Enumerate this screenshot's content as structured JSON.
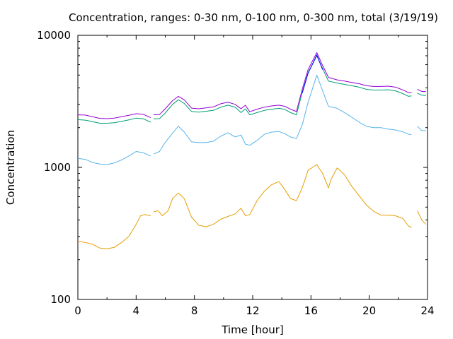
{
  "chart_data": {
    "type": "line",
    "title": "Concentration, ranges: 0-30 nm, 0-100 nm, 0-300 nm, total (3/19/19)",
    "xlabel": "Time [hour]",
    "ylabel": "Concentration",
    "xlim": [
      0,
      24
    ],
    "ylim": [
      100,
      10000
    ],
    "yscale": "log",
    "grid": false,
    "legend": "none",
    "x_ticks": [
      0,
      4,
      8,
      12,
      16,
      20,
      24
    ],
    "x_tick_labels": [
      "0",
      "4",
      "8",
      "12",
      "16",
      "20",
      "24"
    ],
    "y_ticks": [
      100,
      1000,
      10000
    ],
    "y_tick_labels": [
      "100",
      "1000",
      "10000"
    ],
    "series": [
      {
        "color": "#e69f00",
        "segments": [
          [
            [
              0,
              275
            ],
            [
              0.5,
              270
            ],
            [
              1,
              262
            ],
            [
              1.5,
              245
            ],
            [
              2,
              242
            ],
            [
              2.5,
              248
            ],
            [
              3,
              270
            ],
            [
              3.5,
              300
            ],
            [
              4,
              370
            ],
            [
              4.3,
              430
            ],
            [
              4.6,
              440
            ],
            [
              5,
              430
            ]
          ],
          [
            [
              5.2,
              460
            ],
            [
              5.5,
              470
            ],
            [
              5.8,
              430
            ],
            [
              6.2,
              470
            ],
            [
              6.5,
              580
            ],
            [
              6.9,
              640
            ],
            [
              7.3,
              580
            ],
            [
              7.8,
              420
            ],
            [
              8.3,
              365
            ],
            [
              8.8,
              355
            ],
            [
              9.3,
              370
            ],
            [
              9.8,
              405
            ],
            [
              10.3,
              425
            ],
            [
              10.8,
              445
            ],
            [
              11.2,
              490
            ],
            [
              11.5,
              430
            ],
            [
              11.8,
              440
            ],
            [
              12.3,
              560
            ],
            [
              12.8,
              660
            ],
            [
              13.3,
              740
            ],
            [
              13.8,
              780
            ],
            [
              14.2,
              680
            ],
            [
              14.6,
              580
            ],
            [
              15,
              560
            ],
            [
              15.4,
              700
            ],
            [
              15.8,
              950
            ],
            [
              16.4,
              1050
            ],
            [
              16.8,
              900
            ],
            [
              17.2,
              700
            ],
            [
              17.4,
              820
            ],
            [
              17.8,
              990
            ],
            [
              18.3,
              880
            ],
            [
              18.8,
              720
            ],
            [
              19.3,
              610
            ],
            [
              19.8,
              520
            ],
            [
              20.3,
              465
            ],
            [
              20.8,
              435
            ],
            [
              21.3,
              435
            ],
            [
              21.8,
              430
            ],
            [
              22.3,
              410
            ],
            [
              22.7,
              360
            ],
            [
              22.9,
              350
            ]
          ],
          [
            [
              23.3,
              470
            ],
            [
              23.6,
              400
            ],
            [
              23.9,
              370
            ]
          ]
        ]
      },
      {
        "color": "#56b4e9",
        "segments": [
          [
            [
              0,
              1170
            ],
            [
              0.5,
              1150
            ],
            [
              1,
              1090
            ],
            [
              1.5,
              1060
            ],
            [
              2,
              1050
            ],
            [
              2.5,
              1080
            ],
            [
              3,
              1140
            ],
            [
              3.5,
              1220
            ],
            [
              4,
              1320
            ],
            [
              4.5,
              1290
            ],
            [
              5,
              1220
            ]
          ],
          [
            [
              5.2,
              1260
            ],
            [
              5.6,
              1320
            ],
            [
              6,
              1550
            ],
            [
              6.5,
              1820
            ],
            [
              6.9,
              2050
            ],
            [
              7.3,
              1850
            ],
            [
              7.8,
              1560
            ],
            [
              8.3,
              1540
            ],
            [
              8.8,
              1540
            ],
            [
              9.3,
              1580
            ],
            [
              9.8,
              1720
            ],
            [
              10.3,
              1830
            ],
            [
              10.8,
              1700
            ],
            [
              11.2,
              1760
            ],
            [
              11.5,
              1500
            ],
            [
              11.8,
              1470
            ],
            [
              12.3,
              1600
            ],
            [
              12.8,
              1780
            ],
            [
              13.3,
              1850
            ],
            [
              13.8,
              1870
            ],
            [
              14.2,
              1800
            ],
            [
              14.6,
              1700
            ],
            [
              15,
              1650
            ],
            [
              15.4,
              2100
            ],
            [
              15.8,
              3100
            ],
            [
              16.4,
              5000
            ],
            [
              16.8,
              3800
            ],
            [
              17.2,
              2900
            ],
            [
              17.8,
              2800
            ],
            [
              18.3,
              2600
            ],
            [
              18.8,
              2400
            ],
            [
              19.3,
              2200
            ],
            [
              19.8,
              2050
            ],
            [
              20.3,
              2000
            ],
            [
              20.8,
              2000
            ],
            [
              21.3,
              1950
            ],
            [
              21.8,
              1920
            ],
            [
              22.3,
              1860
            ],
            [
              22.7,
              1780
            ],
            [
              22.9,
              1780
            ]
          ],
          [
            [
              23.3,
              2050
            ],
            [
              23.6,
              1900
            ],
            [
              23.9,
              1900
            ]
          ]
        ]
      },
      {
        "color": "#009e73",
        "segments": [
          [
            [
              0,
              2300
            ],
            [
              0.5,
              2280
            ],
            [
              1,
              2220
            ],
            [
              1.5,
              2160
            ],
            [
              2,
              2160
            ],
            [
              2.5,
              2180
            ],
            [
              3,
              2230
            ],
            [
              3.5,
              2290
            ],
            [
              4,
              2360
            ],
            [
              4.5,
              2330
            ],
            [
              5,
              2200
            ]
          ],
          [
            [
              5.2,
              2330
            ],
            [
              5.6,
              2340
            ],
            [
              6,
              2580
            ],
            [
              6.5,
              3000
            ],
            [
              6.9,
              3250
            ],
            [
              7.3,
              3050
            ],
            [
              7.8,
              2650
            ],
            [
              8.3,
              2620
            ],
            [
              8.8,
              2660
            ],
            [
              9.3,
              2700
            ],
            [
              9.8,
              2850
            ],
            [
              10.3,
              2960
            ],
            [
              10.8,
              2850
            ],
            [
              11.2,
              2600
            ],
            [
              11.5,
              2780
            ],
            [
              11.8,
              2500
            ],
            [
              12.3,
              2600
            ],
            [
              12.8,
              2700
            ],
            [
              13.3,
              2760
            ],
            [
              13.8,
              2800
            ],
            [
              14.2,
              2750
            ],
            [
              14.6,
              2600
            ],
            [
              15,
              2500
            ],
            [
              15.4,
              3700
            ],
            [
              15.8,
              5200
            ],
            [
              16.4,
              7000
            ],
            [
              16.8,
              5600
            ],
            [
              17.2,
              4500
            ],
            [
              17.8,
              4350
            ],
            [
              18.3,
              4250
            ],
            [
              18.8,
              4150
            ],
            [
              19.3,
              4050
            ],
            [
              19.8,
              3900
            ],
            [
              20.3,
              3850
            ],
            [
              20.8,
              3850
            ],
            [
              21.3,
              3870
            ],
            [
              21.8,
              3800
            ],
            [
              22.3,
              3620
            ],
            [
              22.7,
              3450
            ],
            [
              22.9,
              3480
            ]
          ],
          [
            [
              23.3,
              3650
            ],
            [
              23.6,
              3520
            ],
            [
              23.9,
              3500
            ]
          ]
        ]
      },
      {
        "color": "#9400d3",
        "segments": [
          [
            [
              0,
              2500
            ],
            [
              0.5,
              2490
            ],
            [
              1,
              2420
            ],
            [
              1.5,
              2350
            ],
            [
              2,
              2340
            ],
            [
              2.5,
              2360
            ],
            [
              3,
              2420
            ],
            [
              3.5,
              2480
            ],
            [
              4,
              2550
            ],
            [
              4.5,
              2520
            ],
            [
              5,
              2380
            ]
          ],
          [
            [
              5.2,
              2500
            ],
            [
              5.6,
              2510
            ],
            [
              6,
              2780
            ],
            [
              6.5,
              3200
            ],
            [
              6.9,
              3450
            ],
            [
              7.3,
              3250
            ],
            [
              7.8,
              2810
            ],
            [
              8.3,
              2780
            ],
            [
              8.8,
              2820
            ],
            [
              9.3,
              2870
            ],
            [
              9.8,
              3030
            ],
            [
              10.3,
              3120
            ],
            [
              10.8,
              3000
            ],
            [
              11.2,
              2780
            ],
            [
              11.5,
              2950
            ],
            [
              11.8,
              2640
            ],
            [
              12.3,
              2760
            ],
            [
              12.8,
              2860
            ],
            [
              13.3,
              2920
            ],
            [
              13.8,
              2960
            ],
            [
              14.2,
              2900
            ],
            [
              14.6,
              2760
            ],
            [
              15,
              2650
            ],
            [
              15.4,
              3900
            ],
            [
              15.8,
              5500
            ],
            [
              16.4,
              7400
            ],
            [
              16.8,
              5900
            ],
            [
              17.2,
              4800
            ],
            [
              17.8,
              4600
            ],
            [
              18.3,
              4500
            ],
            [
              18.8,
              4400
            ],
            [
              19.3,
              4300
            ],
            [
              19.8,
              4150
            ],
            [
              20.3,
              4100
            ],
            [
              20.8,
              4100
            ],
            [
              21.3,
              4120
            ],
            [
              21.8,
              4050
            ],
            [
              22.3,
              3860
            ],
            [
              22.7,
              3680
            ],
            [
              22.9,
              3700
            ]
          ],
          [
            [
              23.3,
              3900
            ],
            [
              23.6,
              3760
            ],
            [
              23.9,
              3750
            ]
          ]
        ]
      },
      {
        "color": "#0000ff",
        "segments": [
          [
            [
              15.4,
              3650
            ],
            [
              15.8,
              5150
            ],
            [
              16.4,
              7100
            ],
            [
              16.8,
              5500
            ]
          ]
        ]
      }
    ]
  }
}
